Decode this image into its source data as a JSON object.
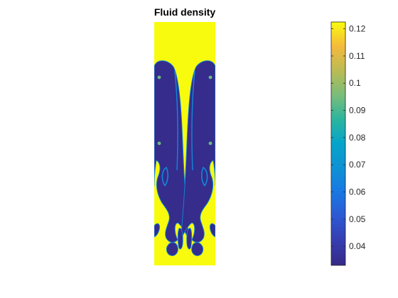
{
  "chart_data": {
    "type": "heatmap",
    "title": "Fluid density",
    "xlabel": "",
    "ylabel": "",
    "colormap": "parula",
    "colorbar": {
      "min": 0.033,
      "max": 0.1225,
      "ticks": [
        0.04,
        0.05,
        0.06,
        0.07,
        0.08,
        0.09,
        0.1,
        0.11,
        0.12
      ],
      "tick_labels": [
        "0.04",
        "0.05",
        "0.06",
        "0.07",
        "0.08",
        "0.09",
        "0.1",
        "0.11",
        "0.12"
      ]
    },
    "field": {
      "dense_value": 0.1225,
      "light_value": 0.034,
      "interface_value": 0.065,
      "description_regions": [
        "dense upper layer",
        "light fluid columns",
        "dense fingers at bottom"
      ]
    },
    "grid": false
  },
  "colors": {
    "parula_low": "#352A87",
    "parula_mid": "#21AFB0",
    "parula_high": "#F9FB0E",
    "axis": "#262626"
  }
}
